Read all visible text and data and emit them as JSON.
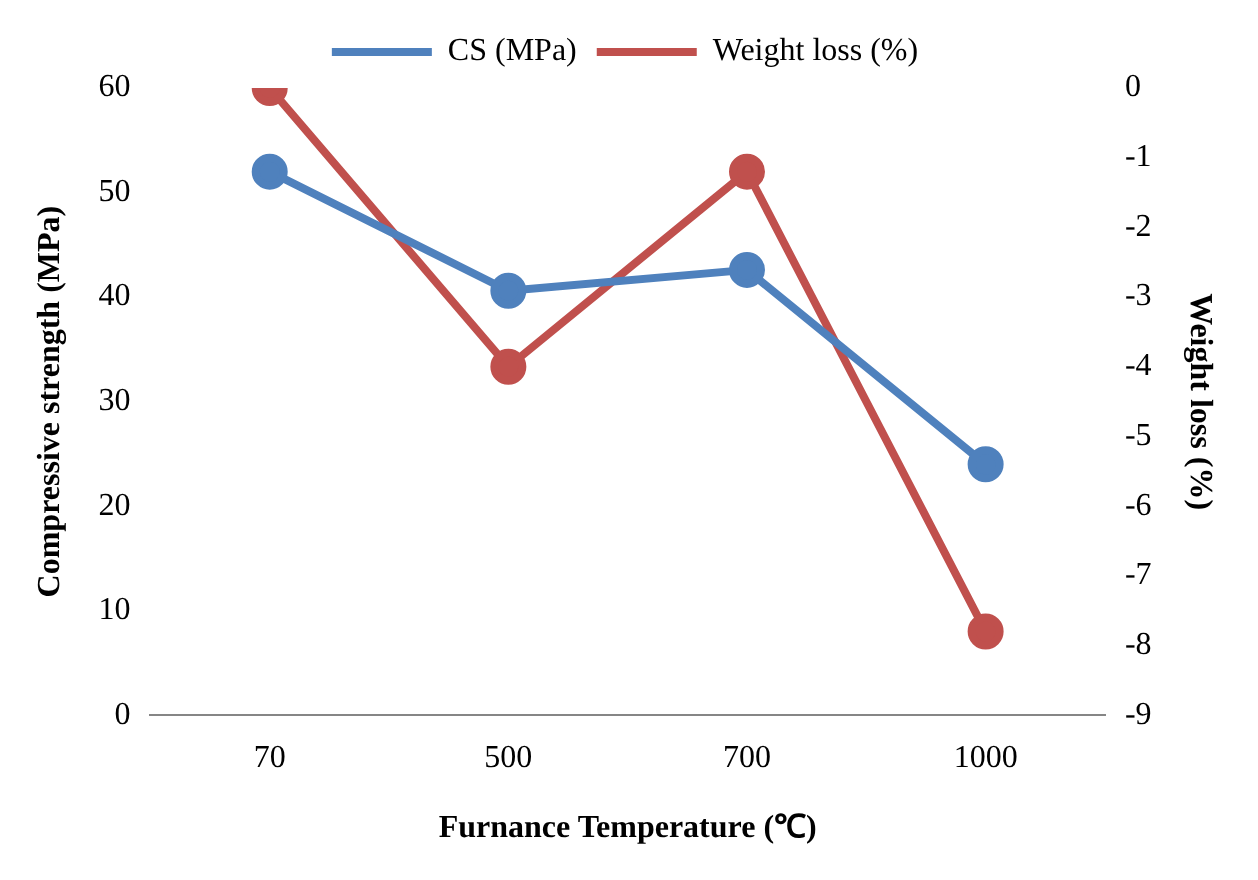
{
  "chart_data": {
    "type": "line",
    "categories": [
      "70",
      "500",
      "700",
      "1000"
    ],
    "series": [
      {
        "name": "CS (MPa)",
        "color": "#4f81bd",
        "values": [
          52.0,
          40.6,
          42.6,
          24.0
        ]
      },
      {
        "name": "Weight loss (%)",
        "color": "#c0504d",
        "values": [
          0,
          -4.0,
          -1.2,
          -7.8
        ],
        "axis": "y2"
      }
    ],
    "xlabel": "Furnance Temperature (℃)",
    "ylabel": "Compressive strength (MPa)",
    "y2label": "Weight loss (%)",
    "ylim": [
      0,
      60
    ],
    "yticks": [
      0,
      10,
      20,
      30,
      40,
      50,
      60
    ],
    "y2lim": [
      -9,
      0
    ],
    "y2ticks": [
      -9,
      -8,
      -7,
      -6,
      -5,
      -4,
      -3,
      -2,
      -1,
      0
    ],
    "legend": "top",
    "marker": "circle",
    "line_style": "solid",
    "grid": false
  }
}
